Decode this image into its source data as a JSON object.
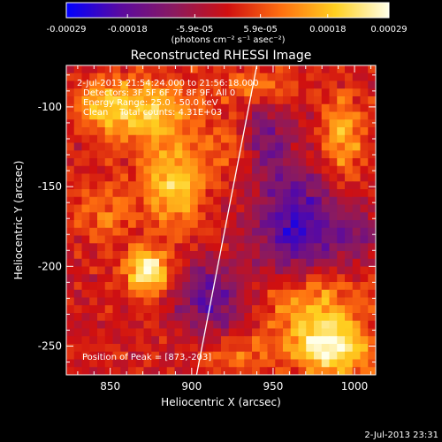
{
  "chart_data": {
    "type": "heatmap",
    "title": "Reconstructed RHESSI Image",
    "xlabel": "Heliocentric X (arcsec)",
    "ylabel": "Heliocentric Y (arcsec)",
    "xlim": [
      823,
      1013
    ],
    "ylim": [
      -268,
      -74
    ],
    "x_ticks": [
      850,
      900,
      950,
      1000
    ],
    "y_ticks": [
      -250,
      -200,
      -150,
      -100
    ],
    "colorbar": {
      "range": [
        -0.00029,
        0.00029
      ],
      "tick_values": [
        -0.00029,
        -0.00018,
        -5.9e-05,
        5.9e-05,
        0.00018,
        0.00029
      ],
      "tick_labels": [
        "-0.00029",
        "-0.00018",
        "-5.9e-05",
        "5.9e-05",
        "0.00018",
        "0.00029"
      ],
      "unit_label": "(photons cm⁻² s⁻¹ asec⁻²)",
      "colors": [
        "#0000ff",
        "#5a0aa0",
        "#8a1a60",
        "#d01010",
        "#ff7010",
        "#ffd020",
        "#ffffe8"
      ]
    },
    "annotations": [
      "2-Jul-2013 21:54:24.000 to 21:56:18.000",
      "Detectors: 3F 5F 6F 7F 8F 9F, All 0",
      "Energy Range: 25.0 - 50.0 keV",
      "Clean    Total counts: 4.31E+03"
    ],
    "peak_label": "Position of Peak = [873,-203]",
    "peak_position": [
      873,
      -203
    ],
    "sources": [
      {
        "x": 873,
        "y": -203,
        "flux": 0.00029,
        "sx": 9,
        "sy": 10
      },
      {
        "x": 889,
        "y": -148,
        "flux": 0.00021,
        "sx": 13,
        "sy": 20
      },
      {
        "x": 873,
        "y": -103,
        "flux": 0.00019,
        "sx": 20,
        "sy": 14
      },
      {
        "x": 845,
        "y": -98,
        "flux": 0.00013,
        "sx": 12,
        "sy": 12
      },
      {
        "x": 985,
        "y": -252,
        "flux": 0.00027,
        "sx": 17,
        "sy": 11
      },
      {
        "x": 975,
        "y": -225,
        "flux": 0.00017,
        "sx": 22,
        "sy": 16
      },
      {
        "x": 993,
        "y": -120,
        "flux": 0.00016,
        "sx": 9,
        "sy": 20
      },
      {
        "x": 940,
        "y": -88,
        "flux": 0.00012,
        "sx": 16,
        "sy": 8
      },
      {
        "x": 925,
        "y": -125,
        "flux": 0.0001,
        "sx": 10,
        "sy": 14
      },
      {
        "x": 845,
        "y": -165,
        "flux": 0.0001,
        "sx": 12,
        "sy": 14
      },
      {
        "x": 925,
        "y": -255,
        "flux": 0.0001,
        "sx": 14,
        "sy": 8
      },
      {
        "x": 965,
        "y": -175,
        "flux": -0.00022,
        "sx": 18,
        "sy": 24
      },
      {
        "x": 912,
        "y": -220,
        "flux": -0.00018,
        "sx": 14,
        "sy": 16
      },
      {
        "x": 945,
        "y": -120,
        "flux": -0.00012,
        "sx": 12,
        "sy": 18
      },
      {
        "x": 1000,
        "y": -180,
        "flux": -0.0001,
        "sx": 10,
        "sy": 14
      }
    ],
    "limb_line": {
      "x": [
        903,
        940
      ],
      "y": [
        -268,
        -74
      ]
    }
  },
  "timestamp": "2-Jul-2013 23:31"
}
